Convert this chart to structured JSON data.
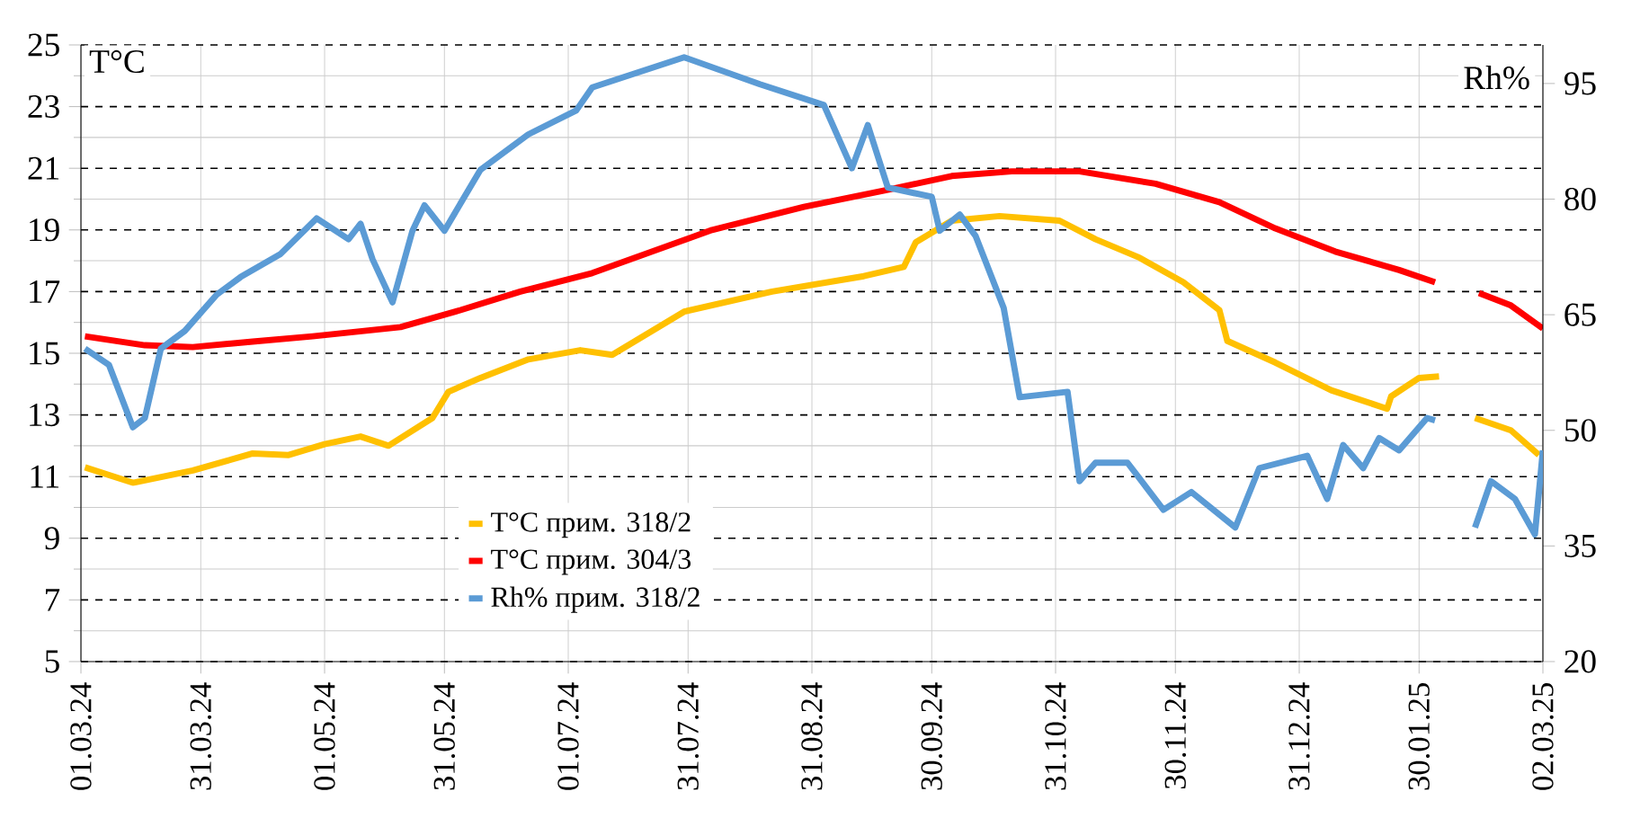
{
  "chart_data": {
    "type": "line",
    "ylabel": "T°C",
    "y2label": "Rh%",
    "xlim": [
      "2024-03-01",
      "2025-03-02"
    ],
    "xticks": [
      {
        "value": "2024-03-01",
        "label": "01.03.24"
      },
      {
        "value": "2024-03-31",
        "label": "31.03.24"
      },
      {
        "value": "2024-05-01",
        "label": "01.05.24"
      },
      {
        "value": "2024-05-31",
        "label": "31.05.24"
      },
      {
        "value": "2024-07-01",
        "label": "01.07.24"
      },
      {
        "value": "2024-07-31",
        "label": "31.07.24"
      },
      {
        "value": "2024-08-31",
        "label": "31.08.24"
      },
      {
        "value": "2024-09-30",
        "label": "30.09.24"
      },
      {
        "value": "2024-10-31",
        "label": "31.10.24"
      },
      {
        "value": "2024-11-30",
        "label": "30.11.24"
      },
      {
        "value": "2024-12-31",
        "label": "31.12.24"
      },
      {
        "value": "2025-01-30",
        "label": "30.01.25"
      },
      {
        "value": "2025-03-02",
        "label": "02.03.25"
      }
    ],
    "ylim": [
      5,
      25
    ],
    "yticks": [
      5,
      7,
      9,
      11,
      13,
      15,
      17,
      19,
      21,
      23,
      25
    ],
    "y2lim": [
      20,
      100
    ],
    "y2ticks": [
      20,
      35,
      50,
      65,
      80,
      95
    ],
    "grid": true,
    "legend": "bottom left",
    "series": [
      {
        "name": "T°C прим. 318/2",
        "color": "#ffc000",
        "x": [
          "2024-03-02",
          "2024-03-14",
          "2024-03-29",
          "2024-04-13",
          "2024-04-22",
          "2024-05-01",
          "2024-05-10",
          "2024-05-17",
          "2024-05-28",
          "2024-06-01",
          "2024-06-09",
          "2024-06-21",
          "2024-07-04",
          "2024-07-12",
          "2024-07-30",
          "2024-08-21",
          "2024-09-13",
          "2024-09-23",
          "2024-09-26",
          "2024-10-05",
          "2024-10-17",
          "2024-11-01",
          "2024-11-10",
          "2024-11-21",
          "2024-12-02",
          "2024-12-11",
          "2024-12-13",
          "2024-12-25",
          "2025-01-08",
          "2025-01-22",
          "2025-01-23",
          "2025-01-30",
          "2025-02-04",
          "2025-02-08",
          "2025-02-13",
          "2025-02-22",
          "2025-03-01"
        ],
        "values": [
          11.3,
          10.8,
          11.2,
          11.75,
          11.7,
          12.05,
          12.3,
          12.0,
          12.9,
          13.75,
          14.2,
          14.8,
          15.1,
          14.95,
          16.35,
          17.0,
          17.5,
          17.8,
          18.6,
          19.3,
          19.45,
          19.3,
          18.7,
          18.1,
          17.3,
          16.4,
          15.4,
          14.7,
          13.8,
          13.2,
          13.6,
          14.2,
          14.25,
          null,
          12.9,
          12.5,
          11.7
        ]
      },
      {
        "name": "T°C прим. 304/3",
        "color": "#ff0000",
        "x": [
          "2024-03-02",
          "2024-03-17",
          "2024-03-29",
          "2024-04-13",
          "2024-04-28",
          "2024-05-20",
          "2024-06-04",
          "2024-06-19",
          "2024-07-07",
          "2024-08-06",
          "2024-08-29",
          "2024-09-19",
          "2024-10-05",
          "2024-10-20",
          "2024-11-06",
          "2024-11-25",
          "2024-12-11",
          "2024-12-25",
          "2025-01-09",
          "2025-01-25",
          "2025-02-03",
          "2025-02-08",
          "2025-02-14",
          "2025-02-22",
          "2025-03-02"
        ],
        "values": [
          15.55,
          15.26,
          15.2,
          15.38,
          15.55,
          15.85,
          16.4,
          17.0,
          17.6,
          19.0,
          19.75,
          20.3,
          20.75,
          20.9,
          20.9,
          20.5,
          19.9,
          19.05,
          18.3,
          17.7,
          17.3,
          null,
          16.95,
          16.55,
          15.8
        ]
      },
      {
        "name": "Rh% прим. 318/2",
        "color": "#5b9bd5",
        "axis": "y2",
        "x": [
          "2024-03-02",
          "2024-03-08",
          "2024-03-14",
          "2024-03-17",
          "2024-03-21",
          "2024-03-27",
          "2024-04-04",
          "2024-04-10",
          "2024-04-20",
          "2024-04-29",
          "2024-05-07",
          "2024-05-10",
          "2024-05-13",
          "2024-05-18",
          "2024-05-23",
          "2024-05-26",
          "2024-05-31",
          "2024-06-09",
          "2024-06-21",
          "2024-07-03",
          "2024-07-07",
          "2024-07-30",
          "2024-08-18",
          "2024-09-03",
          "2024-09-10",
          "2024-09-14",
          "2024-09-19",
          "2024-09-30",
          "2024-10-02",
          "2024-10-07",
          "2024-10-11",
          "2024-10-18",
          "2024-10-22",
          "2024-11-03",
          "2024-11-06",
          "2024-11-10",
          "2024-11-18",
          "2024-11-27",
          "2024-12-04",
          "2024-12-15",
          "2024-12-21",
          "2025-01-02",
          "2025-01-07",
          "2025-01-11",
          "2025-01-16",
          "2025-01-20",
          "2025-01-25",
          "2025-02-01",
          "2025-02-03",
          "2025-02-08",
          "2025-02-13",
          "2025-02-17",
          "2025-02-23",
          "2025-02-28",
          "2025-03-02"
        ],
        "values": [
          60.6,
          58.5,
          50.4,
          51.6,
          60.6,
          62.9,
          67.6,
          69.9,
          72.9,
          77.5,
          74.8,
          76.8,
          72.2,
          66.6,
          75.9,
          79.2,
          75.9,
          83.8,
          88.4,
          91.5,
          94.5,
          98.4,
          94.9,
          92.2,
          84.0,
          89.6,
          81.5,
          80.3,
          75.9,
          78.0,
          75.2,
          65.9,
          54.3,
          55.0,
          43.4,
          45.8,
          45.8,
          39.7,
          42.0,
          37.4,
          45.1,
          46.7,
          41.1,
          48.1,
          45.1,
          49.0,
          47.4,
          51.6,
          51.3,
          null,
          37.4,
          43.4,
          41.1,
          36.5,
          47.4
        ]
      }
    ]
  }
}
